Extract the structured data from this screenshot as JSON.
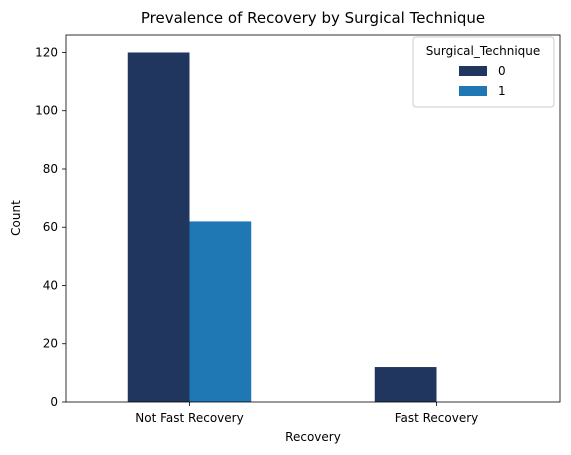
{
  "chart_data": {
    "type": "bar",
    "title": "Prevalence of Recovery by Surgical Technique",
    "xlabel": "Recovery",
    "ylabel": "Count",
    "categories": [
      "Not Fast Recovery",
      "Fast Recovery"
    ],
    "series": [
      {
        "name": "0",
        "values": [
          120,
          12
        ],
        "color": "#20365f"
      },
      {
        "name": "1",
        "values": [
          62,
          0
        ],
        "color": "#1f77b4"
      }
    ],
    "ylim": [
      0,
      126
    ],
    "yticks": [
      0,
      20,
      40,
      60,
      80,
      100,
      120
    ],
    "grid": false,
    "legend": {
      "title": "Surgical_Technique",
      "placement": "top-right"
    }
  }
}
